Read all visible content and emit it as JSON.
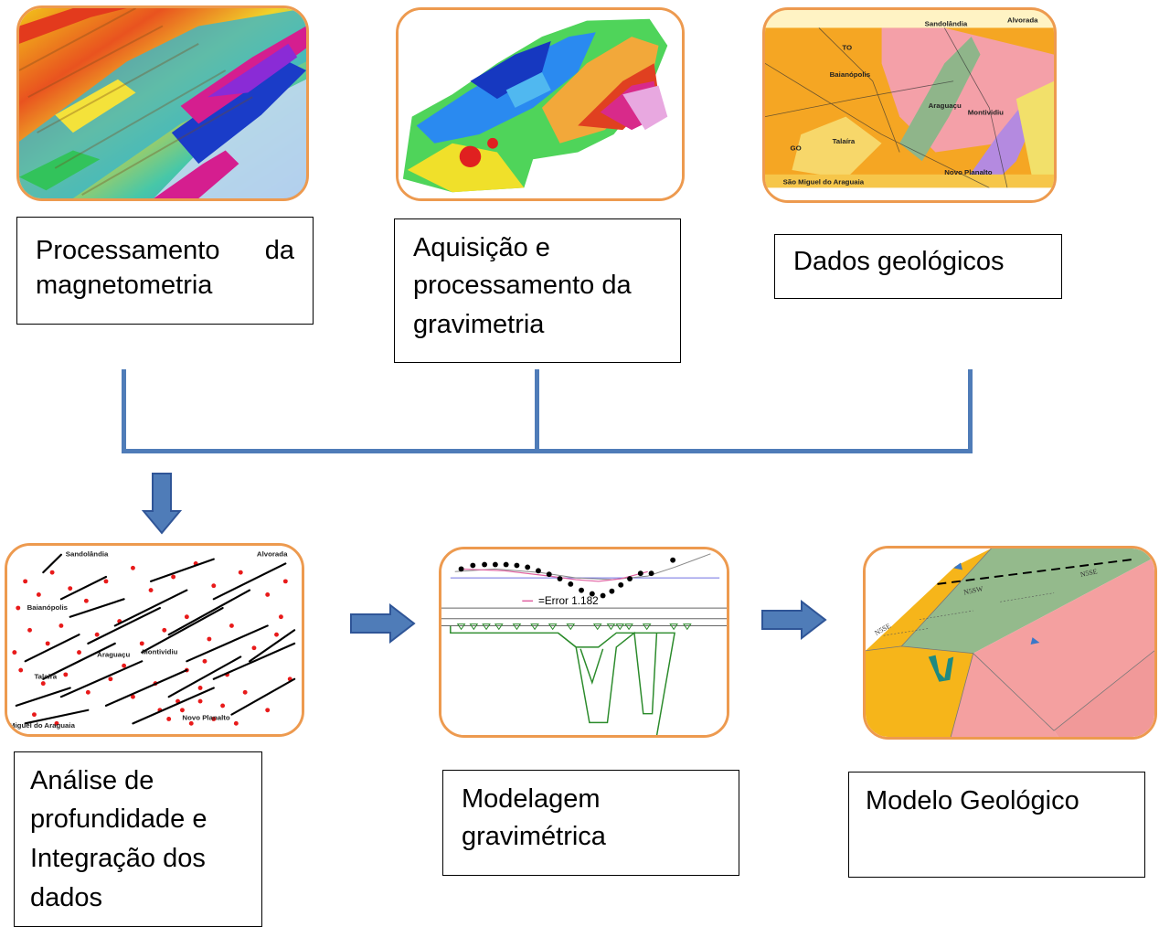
{
  "steps": {
    "magnetometry": {
      "label": "Processamento da magnetometria"
    },
    "gravimetry": {
      "label_lines": [
        "Aquisição e",
        "processamento da",
        "gravimetria"
      ]
    },
    "geology": {
      "label": "Dados geológicos"
    },
    "depth_analysis": {
      "label_lines": [
        "Análise de",
        "profundidade e",
        "Integração dos",
        "dados"
      ]
    },
    "grav_modeling": {
      "label_lines": [
        "Modelagem",
        "gravimétrica"
      ]
    },
    "geo_model": {
      "label": "Modelo Geológico"
    }
  },
  "geology_map": {
    "places": [
      "Sandolândia",
      "Araguaçu",
      "Baianópolis",
      "Montividiu",
      "Talaíra",
      "São Miguel do Araguaia",
      "Novo Planalto",
      "Alvorada"
    ],
    "state_labels": [
      "TO",
      "GO"
    ]
  },
  "lineament_map": {
    "places": [
      "Sandolândia",
      "Alvorada",
      "Baianópolis",
      "Araguaçu",
      "Montividiu",
      "Talaíra",
      "Miguel do Araguaia",
      "Novo Planalto"
    ]
  },
  "grav_model": {
    "error_label": "=Error 1.182"
  },
  "block_model": {
    "labels": [
      "N5SE",
      "N5SW",
      "N5SE"
    ]
  },
  "colors": {
    "frame": "#ed9a4f",
    "connector": "#4f7cb8",
    "arrow_fill": "#4f7cb8",
    "arrow_stroke": "#2f5597"
  }
}
